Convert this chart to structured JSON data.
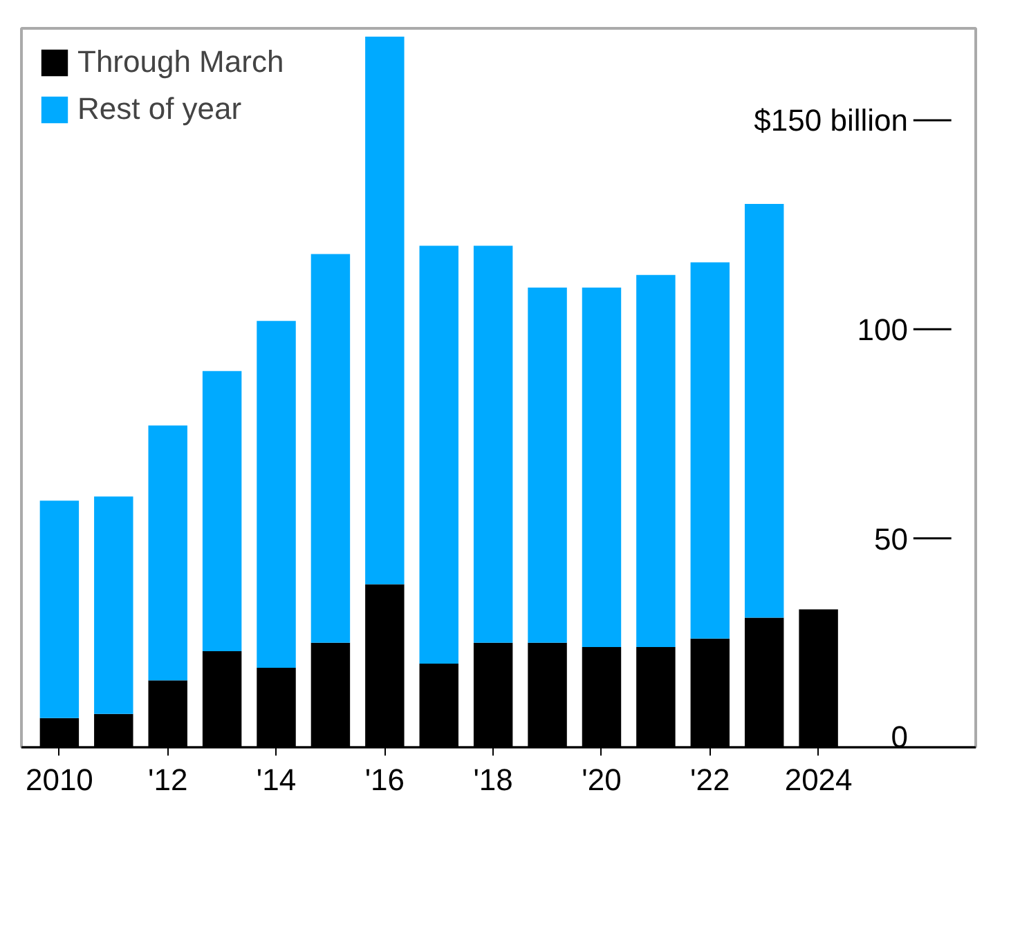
{
  "chart_data": {
    "type": "bar",
    "stacked": true,
    "categories": [
      "2010",
      null,
      "'12",
      null,
      "'14",
      null,
      "'16",
      null,
      "'18",
      null,
      "'20",
      null,
      "'22",
      null,
      "2024"
    ],
    "series": [
      {
        "name": "Through March",
        "color": "#000000",
        "values": [
          7,
          8,
          16,
          23,
          19,
          25,
          39,
          20,
          25,
          25,
          24,
          24,
          26,
          31,
          33
        ]
      },
      {
        "name": "Rest of year",
        "color": "#00aaff",
        "values": [
          52,
          52,
          61,
          67,
          83,
          93,
          131,
          100,
          95,
          85,
          86,
          89,
          90,
          99,
          null
        ]
      }
    ],
    "ylim": [
      0,
      172
    ],
    "yticks": [
      0,
      50,
      100,
      {
        "value": 150,
        "label": "$150 billion"
      }
    ],
    "grid": false,
    "legend": "top left"
  }
}
